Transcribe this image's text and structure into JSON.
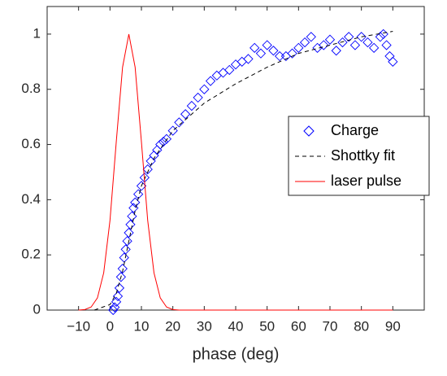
{
  "chart_data": {
    "type": "line",
    "x_label": "phase (deg)",
    "xlim": [
      -20,
      100
    ],
    "ylim": [
      0,
      1.1
    ],
    "xticks": [
      {
        "value": -10,
        "label": "−10"
      },
      0,
      10,
      20,
      30,
      40,
      50,
      60,
      70,
      80,
      90
    ],
    "yticks": [
      0,
      0.2,
      0.4,
      0.6,
      0.8,
      1
    ],
    "legend": "right",
    "series": [
      {
        "name": "Charge",
        "kind": "scatter",
        "color": "#0000ff",
        "x": [
          1,
          1.5,
          2,
          2.5,
          3,
          3.5,
          4,
          4.5,
          5,
          5.5,
          6,
          6.5,
          7,
          7.5,
          8,
          9,
          10,
          11,
          12,
          13,
          14,
          15,
          16,
          17,
          18,
          20,
          22,
          24,
          26,
          28,
          30,
          32,
          34,
          36,
          38,
          40,
          42,
          44,
          46,
          48,
          50,
          52,
          54,
          56,
          58,
          60,
          62,
          64,
          66,
          68,
          70,
          72,
          74,
          76,
          78,
          80,
          82,
          84,
          86,
          87,
          88,
          89,
          90
        ],
        "values": [
          0,
          0.01,
          0.03,
          0.05,
          0.08,
          0.12,
          0.15,
          0.19,
          0.22,
          0.25,
          0.28,
          0.31,
          0.34,
          0.37,
          0.39,
          0.42,
          0.45,
          0.48,
          0.51,
          0.54,
          0.56,
          0.58,
          0.6,
          0.61,
          0.62,
          0.65,
          0.68,
          0.71,
          0.74,
          0.77,
          0.8,
          0.83,
          0.85,
          0.86,
          0.87,
          0.89,
          0.9,
          0.91,
          0.95,
          0.93,
          0.96,
          0.94,
          0.92,
          0.92,
          0.93,
          0.95,
          0.97,
          0.99,
          0.95,
          0.96,
          0.98,
          0.94,
          0.97,
          0.99,
          0.96,
          0.99,
          0.97,
          0.95,
          0.99,
          1,
          0.96,
          0.92,
          0.9
        ]
      },
      {
        "name": "Shottky fit",
        "kind": "dashed",
        "color": "#000000",
        "x": [
          -5,
          0,
          2,
          4,
          6,
          8,
          10,
          14,
          20,
          30,
          40,
          50,
          60,
          70,
          80,
          90
        ],
        "values": [
          0,
          0.02,
          0.06,
          0.14,
          0.25,
          0.36,
          0.45,
          0.55,
          0.65,
          0.75,
          0.82,
          0.88,
          0.93,
          0.96,
          0.99,
          1.01
        ]
      },
      {
        "name": "laser pulse",
        "kind": "solid",
        "color": "#ff0000",
        "x": [
          -10,
          -8,
          -6,
          -4,
          -2,
          0,
          2,
          4,
          6,
          8,
          10,
          12,
          14,
          16,
          18,
          20,
          22,
          90
        ],
        "values": [
          0,
          0.002,
          0.011,
          0.044,
          0.135,
          0.325,
          0.61,
          0.88,
          1,
          0.88,
          0.61,
          0.325,
          0.135,
          0.044,
          0.011,
          0.002,
          0,
          0
        ]
      }
    ]
  }
}
